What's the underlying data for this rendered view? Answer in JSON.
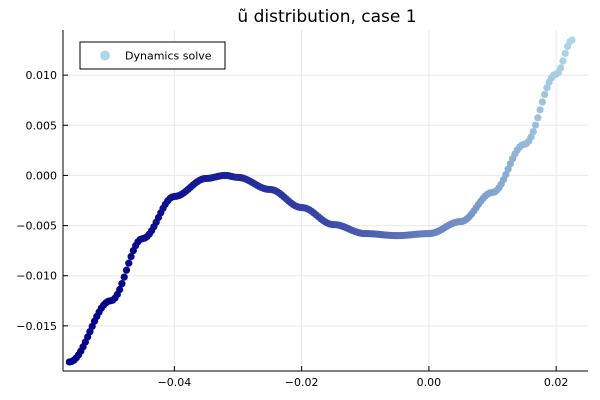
{
  "chart_data": {
    "type": "scatter",
    "title": "ũ distribution, case 1",
    "xlabel": "",
    "ylabel": "",
    "xlim": [
      -0.0575,
      0.025
    ],
    "ylim": [
      -0.0195,
      0.0145
    ],
    "grid": true,
    "legend_position": "top-left",
    "x_ticks": [
      -0.04,
      -0.02,
      0.0,
      0.02
    ],
    "x_tick_labels": [
      "−0.04",
      "−0.02",
      "0.00",
      "0.02"
    ],
    "y_ticks": [
      0.01,
      0.005,
      0.0,
      -0.005,
      -0.01,
      -0.015
    ],
    "y_tick_labels": [
      "0.010",
      "0.005",
      "0.000",
      "−0.005",
      "−0.010",
      "−0.015"
    ],
    "series": [
      {
        "name": "Dynamics solve",
        "x_range": [
          -0.0565,
          0.0225
        ],
        "curve_points": [
          [
            -0.0565,
            -0.0186
          ],
          [
            -0.05,
            -0.0125
          ],
          [
            -0.045,
            -0.0063
          ],
          [
            -0.04,
            -0.0021
          ],
          [
            -0.035,
            -0.0003
          ],
          [
            -0.032,
            0.0
          ],
          [
            -0.03,
            -0.0002
          ],
          [
            -0.025,
            -0.0014
          ],
          [
            -0.02,
            -0.0032
          ],
          [
            -0.015,
            -0.0049
          ],
          [
            -0.01,
            -0.0058
          ],
          [
            -0.005,
            -0.006
          ],
          [
            0.0,
            -0.0058
          ],
          [
            0.005,
            -0.0046
          ],
          [
            0.01,
            -0.0017
          ],
          [
            0.015,
            0.0031
          ],
          [
            0.02,
            0.0101
          ],
          [
            0.0225,
            0.0135
          ]
        ],
        "color_start": "#00008b",
        "color_end": "#add8e6"
      }
    ]
  },
  "colors": {
    "grid": "#e8e8e8",
    "axis": "#000000",
    "legend_marker": "#add8e6"
  }
}
